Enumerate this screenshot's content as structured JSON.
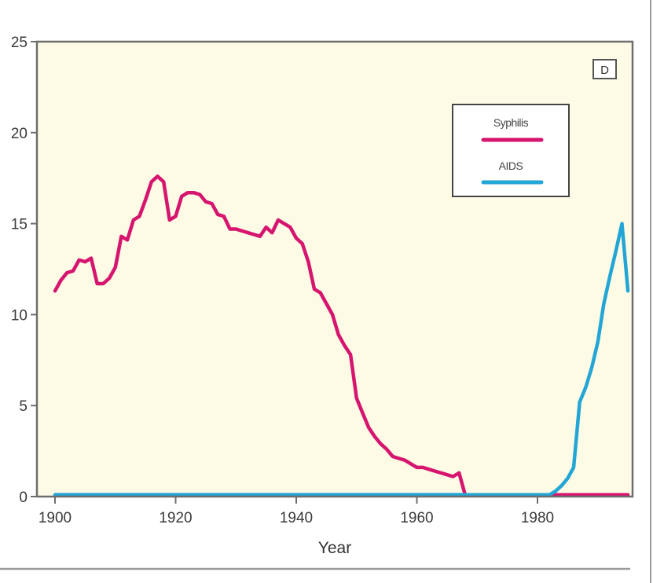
{
  "chart_data": {
    "type": "line",
    "title": "",
    "panel_label": "D",
    "xlabel": "Year",
    "ylabel": "",
    "xlim": [
      1897,
      1996
    ],
    "ylim": [
      0,
      25
    ],
    "x_ticks": [
      1900,
      1920,
      1940,
      1960,
      1980
    ],
    "x_tick_labels": [
      "1900",
      "1920",
      "1940",
      "1960",
      "1980"
    ],
    "y_ticks": [
      0,
      5,
      10,
      15,
      20,
      25
    ],
    "y_tick_labels": [
      "0",
      "5",
      "10",
      "15",
      "20",
      "25"
    ],
    "grid": false,
    "legend": {
      "position": "top-right",
      "entries": [
        "Syphilis",
        "AIDS"
      ]
    },
    "colors": {
      "plot_background": "#fdfbe6",
      "frame": "#6e6e6e",
      "syphilis": "#d6156f",
      "aids": "#23a6d5"
    },
    "series": [
      {
        "name": "Syphilis",
        "x": [
          1900,
          1901,
          1902,
          1903,
          1904,
          1905,
          1906,
          1907,
          1908,
          1909,
          1910,
          1911,
          1912,
          1913,
          1914,
          1915,
          1916,
          1917,
          1918,
          1919,
          1920,
          1921,
          1922,
          1923,
          1924,
          1925,
          1926,
          1927,
          1928,
          1929,
          1930,
          1931,
          1932,
          1933,
          1934,
          1935,
          1936,
          1937,
          1938,
          1939,
          1940,
          1941,
          1942,
          1943,
          1944,
          1945,
          1946,
          1947,
          1948,
          1949,
          1950,
          1951,
          1952,
          1953,
          1954,
          1955,
          1956,
          1957,
          1958,
          1959,
          1960,
          1961,
          1962,
          1963,
          1964,
          1965,
          1966,
          1967,
          1968,
          1970,
          1975,
          1980,
          1985,
          1990,
          1995
        ],
        "values": [
          11.3,
          11.9,
          12.3,
          12.4,
          13.0,
          12.9,
          13.1,
          11.7,
          11.7,
          12.0,
          12.6,
          14.3,
          14.1,
          15.2,
          15.4,
          16.3,
          17.3,
          17.6,
          17.3,
          15.2,
          15.4,
          16.5,
          16.7,
          16.7,
          16.6,
          16.2,
          16.1,
          15.5,
          15.4,
          14.7,
          14.7,
          14.6,
          14.5,
          14.4,
          14.3,
          14.8,
          14.5,
          15.2,
          15.0,
          14.8,
          14.2,
          13.9,
          12.9,
          11.4,
          11.2,
          10.6,
          10.0,
          8.9,
          8.3,
          7.8,
          5.4,
          4.6,
          3.8,
          3.3,
          2.9,
          2.6,
          2.2,
          2.1,
          2.0,
          1.8,
          1.6,
          1.6,
          1.5,
          1.4,
          1.3,
          1.2,
          1.1,
          1.3,
          0.1,
          0.1,
          0.1,
          0.1,
          0.1,
          0.1,
          0.1
        ]
      },
      {
        "name": "AIDS",
        "x": [
          1900,
          1920,
          1940,
          1960,
          1968,
          1975,
          1981,
          1982,
          1983,
          1984,
          1985,
          1986,
          1987,
          1988,
          1989,
          1990,
          1991,
          1992,
          1993,
          1994,
          1995
        ],
        "values": [
          0.1,
          0.1,
          0.1,
          0.1,
          0.1,
          0.1,
          0.1,
          0.1,
          0.3,
          0.6,
          1.0,
          1.6,
          5.2,
          6.0,
          7.1,
          8.5,
          10.6,
          12.1,
          13.5,
          15.0,
          11.3
        ]
      }
    ]
  }
}
